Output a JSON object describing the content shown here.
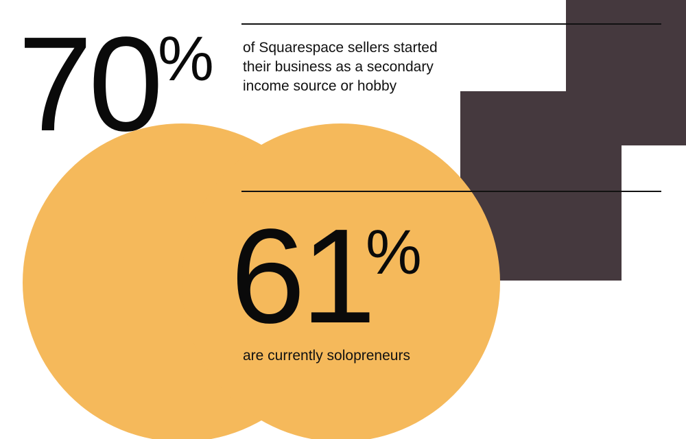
{
  "colors": {
    "background": "#ffffff",
    "circle": "#f5b95b",
    "block": "#45393e",
    "text": "#0a0a0a"
  },
  "stats": [
    {
      "value": "70",
      "unit": "%",
      "caption": "of Squarespace sellers started their business as a secondary income source or hobby"
    },
    {
      "value": "61",
      "unit": "%",
      "caption": "are currently solopreneurs"
    }
  ]
}
